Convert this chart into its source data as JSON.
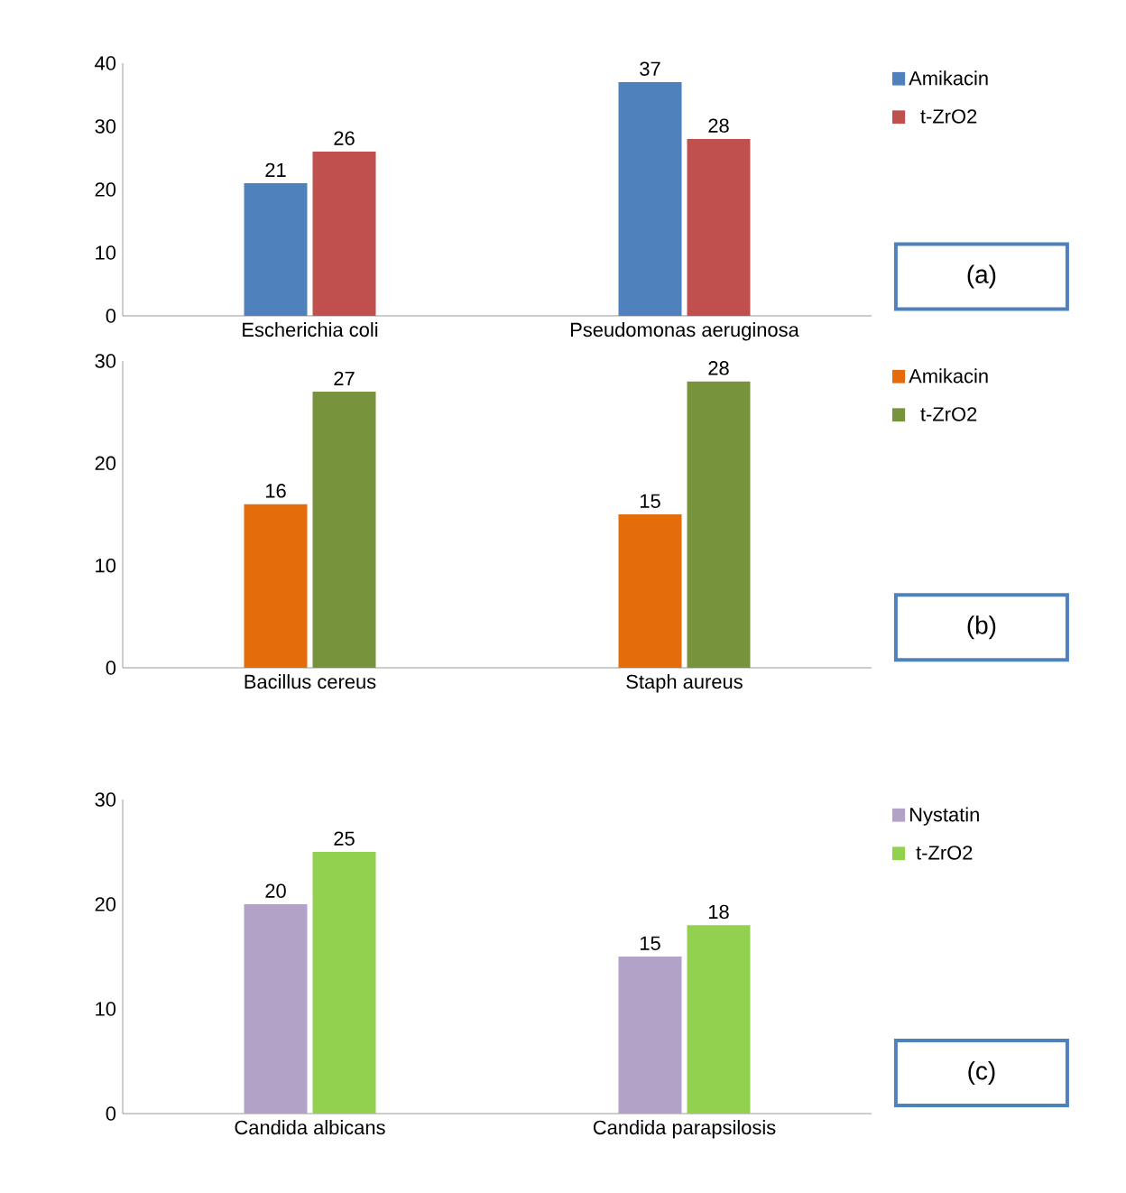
{
  "chart_data": [
    {
      "type": "bar",
      "categories": [
        "Escherichia coli",
        "Pseudomonas aeruginosa"
      ],
      "series": [
        {
          "name": "Amikacin",
          "color": "#4f81bd",
          "values": [
            21,
            37
          ]
        },
        {
          "name": "t-ZrO2",
          "color": "#c0504d",
          "values": [
            26,
            28
          ]
        }
      ],
      "ylim": [
        0,
        40
      ],
      "yticks": [
        0,
        10,
        20,
        30,
        40
      ],
      "data_labels": true,
      "legend": "top right",
      "annotations": [
        "(a)"
      ]
    },
    {
      "type": "bar",
      "categories": [
        "Bacillus cereus",
        "Staph aureus"
      ],
      "series": [
        {
          "name": "Amikacin",
          "color": "#e46c0a",
          "values": [
            16,
            15
          ]
        },
        {
          "name": "t-ZrO2",
          "color": "#77933c",
          "values": [
            27,
            28
          ]
        }
      ],
      "ylim": [
        0,
        30
      ],
      "yticks": [
        0,
        10,
        20,
        30
      ],
      "data_labels": true,
      "legend": "top right",
      "annotations": [
        "(b)"
      ]
    },
    {
      "type": "bar",
      "categories": [
        "Candida albicans",
        "Candida parapsilosis"
      ],
      "series": [
        {
          "name": "Nystatin",
          "color": "#b3a2c7",
          "values": [
            20,
            15
          ]
        },
        {
          "name": "t-ZrO2",
          "color": "#92d050",
          "values": [
            25,
            18
          ]
        }
      ],
      "ylim": [
        0,
        30
      ],
      "yticks": [
        0,
        10,
        20,
        30
      ],
      "data_labels": true,
      "legend": "top right",
      "annotations": [
        "(c)"
      ]
    }
  ]
}
